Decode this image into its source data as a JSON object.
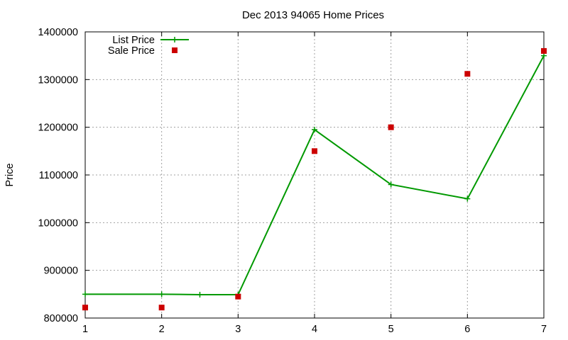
{
  "chart_data": {
    "type": "line",
    "title": "Dec 2013 94065 Home Prices",
    "xlabel": "",
    "ylabel": "Price",
    "xlim": [
      1,
      7
    ],
    "ylim": [
      800000,
      1400000
    ],
    "x_ticks": [
      "1",
      "2",
      "3",
      "4",
      "5",
      "6",
      "7"
    ],
    "y_ticks": [
      "800000",
      "900000",
      "1000000",
      "1100000",
      "1200000",
      "1300000",
      "1400000"
    ],
    "grid": true,
    "legend_position": "top-left",
    "series": [
      {
        "name": "List Price",
        "style": "line-with-plus-markers",
        "color": "#009900",
        "points": [
          [
            1,
            850000
          ],
          [
            2,
            850000
          ],
          [
            2.5,
            849000
          ],
          [
            3,
            849000
          ],
          [
            4,
            1195000
          ],
          [
            5,
            1080000
          ],
          [
            6,
            1050000
          ],
          [
            7,
            1350000
          ]
        ]
      },
      {
        "name": "Sale Price",
        "style": "square-markers",
        "color": "#cc0000",
        "points": [
          [
            1,
            822000
          ],
          [
            2,
            822000
          ],
          [
            3,
            845000
          ],
          [
            4,
            1150000
          ],
          [
            5,
            1200000
          ],
          [
            6,
            1312000
          ],
          [
            7,
            1360000
          ]
        ]
      }
    ]
  }
}
